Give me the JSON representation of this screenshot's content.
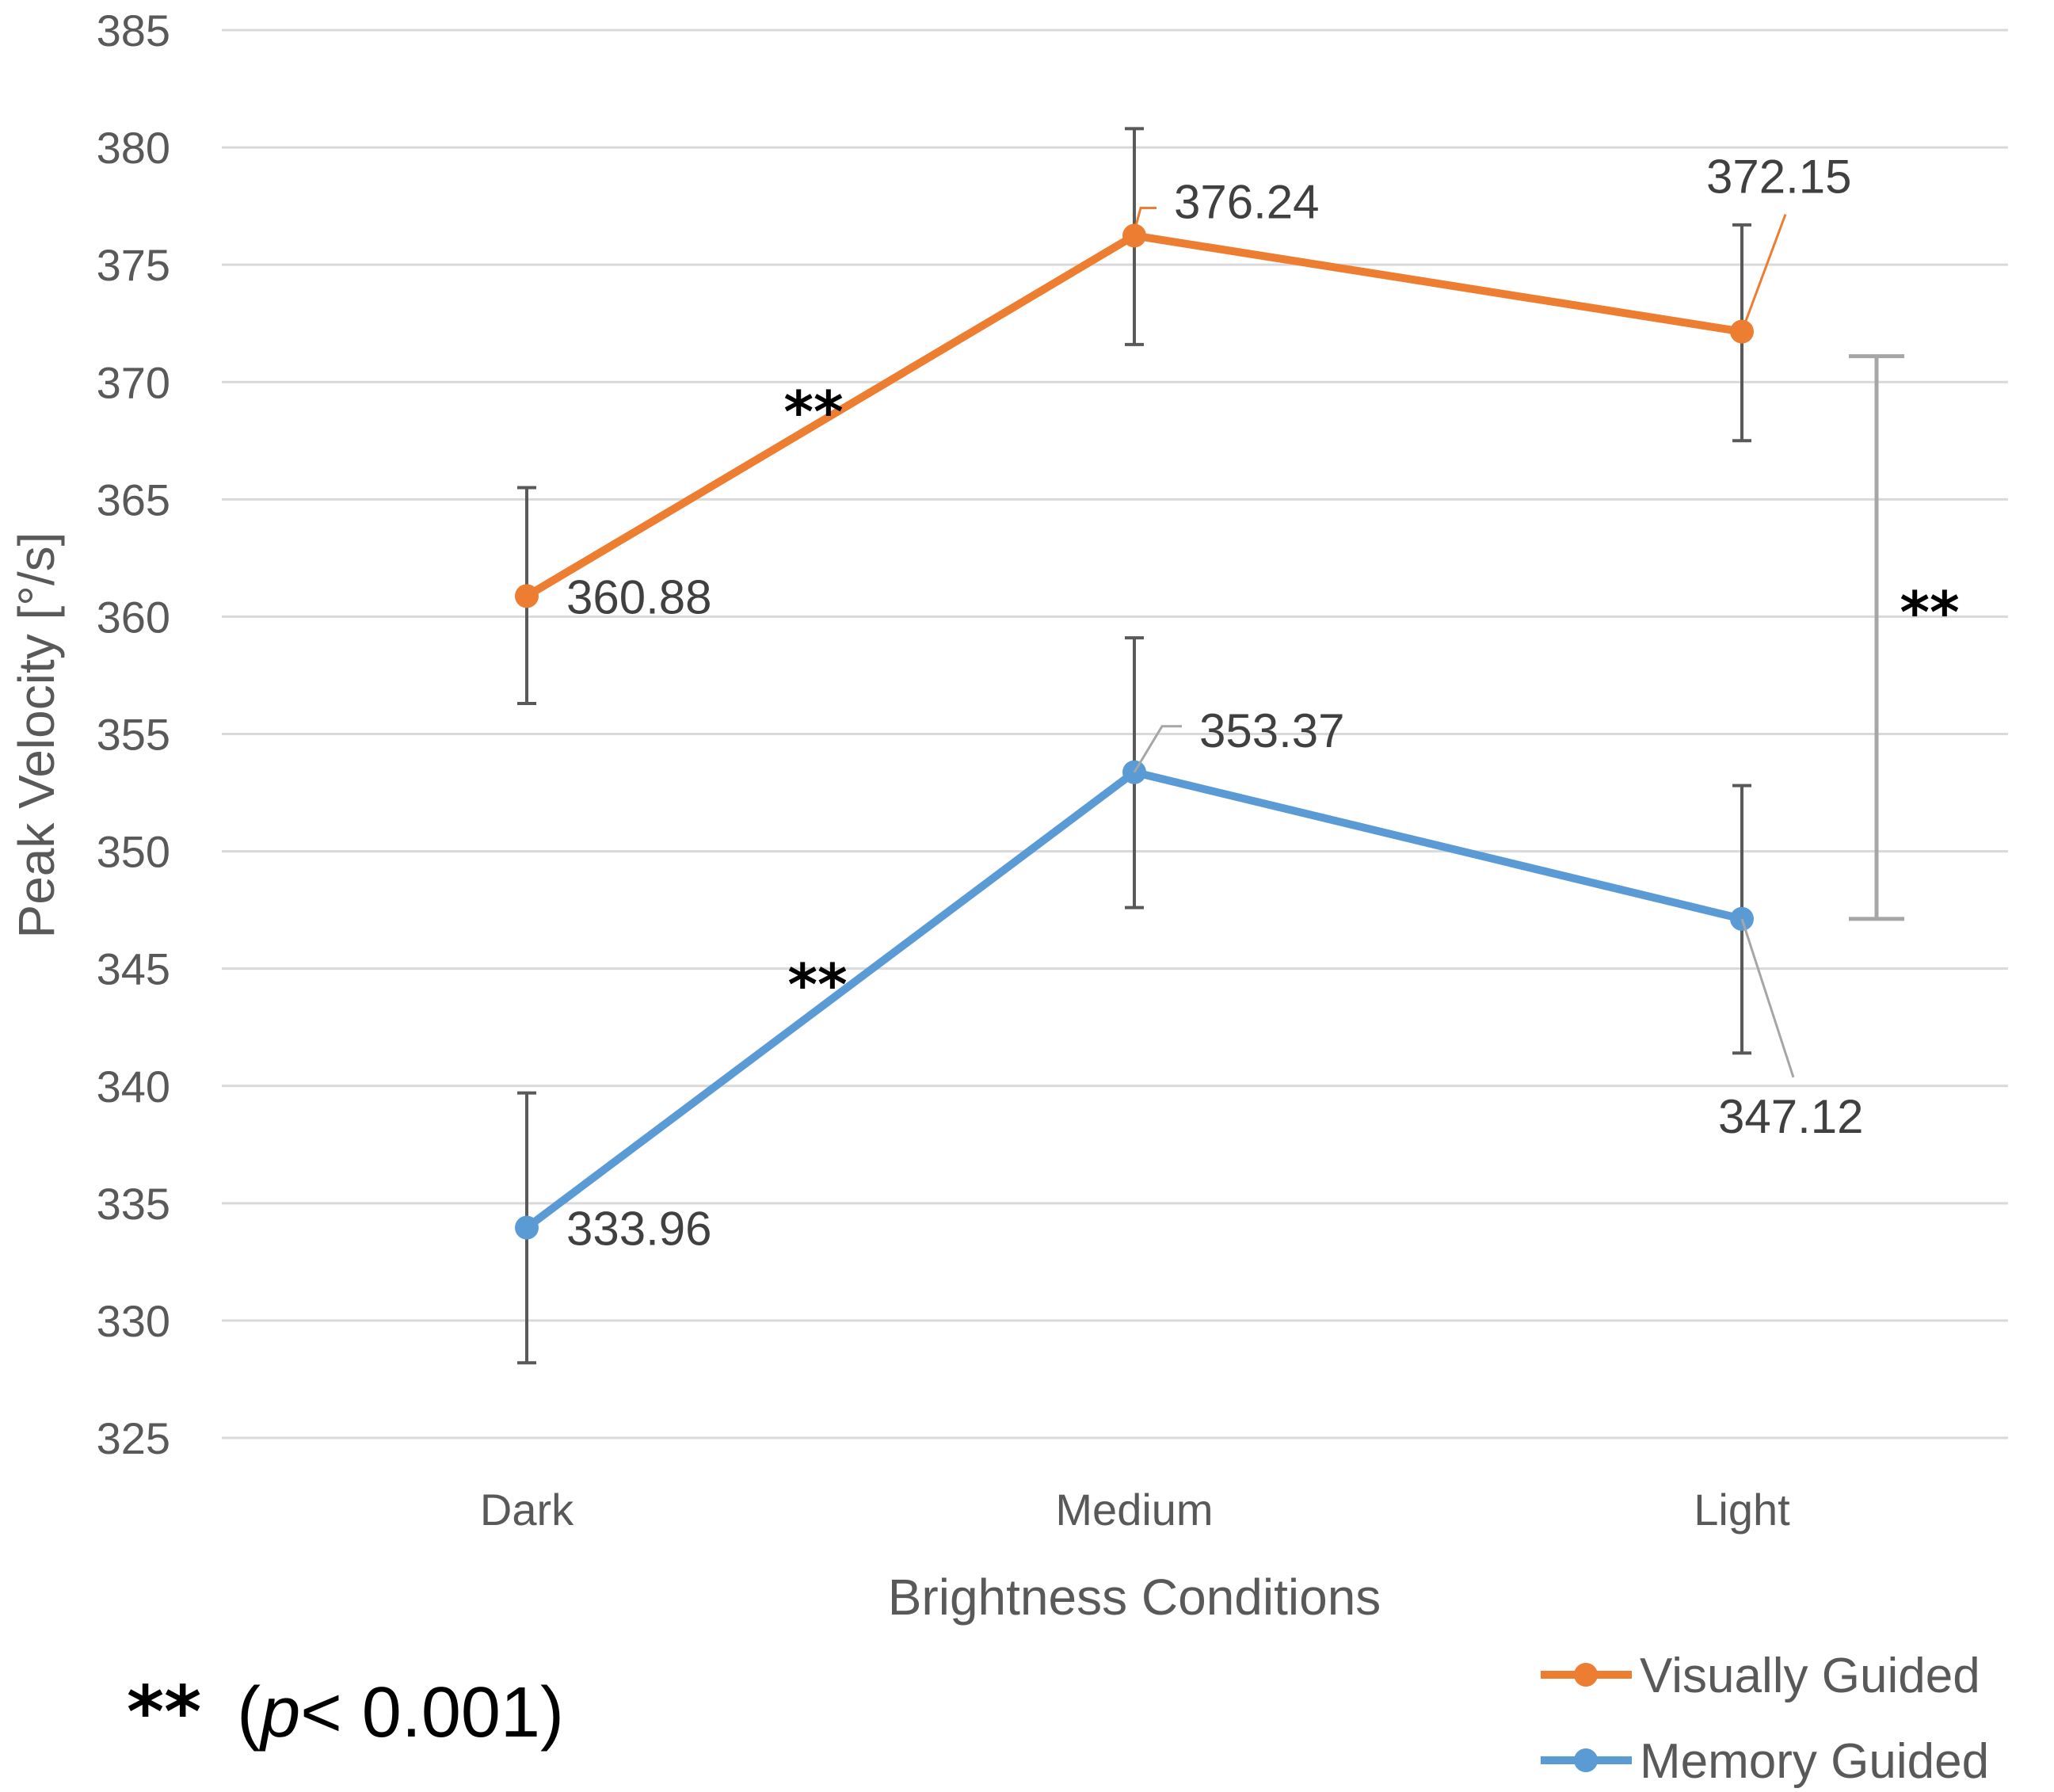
{
  "chart_data": {
    "type": "line",
    "xlabel": "Brightness Conditions",
    "ylabel": "Peak Velocity [°/s]",
    "ylim": [
      325,
      385
    ],
    "ytick_step": 5,
    "categories": [
      "Dark",
      "Medium",
      "Light"
    ],
    "grid": true,
    "legend_position": "bottom-right",
    "series": [
      {
        "name": "Visually Guided",
        "color": "#ED7D31",
        "values": [
          360.88,
          376.24,
          372.15
        ],
        "labels": [
          "360.88",
          "376.24",
          "372.15"
        ],
        "error_low": [
          356.3,
          371.6,
          367.5
        ],
        "error_high": [
          365.5,
          380.8,
          376.7
        ]
      },
      {
        "name": "Memory Guided",
        "color": "#5B9BD5",
        "values": [
          333.96,
          353.37,
          347.12
        ],
        "labels": [
          "333.96",
          "353.37",
          "347.12"
        ],
        "error_low": [
          328.2,
          347.6,
          341.4
        ],
        "error_high": [
          339.7,
          359.1,
          352.8
        ]
      }
    ],
    "annotations": {
      "significance_marker": "**",
      "between_series_bracket": [
        347.12,
        371.1
      ],
      "footnote": {
        "marker": "**",
        "open": "(",
        "p": "p",
        "rest": "< 0.001)"
      }
    }
  }
}
